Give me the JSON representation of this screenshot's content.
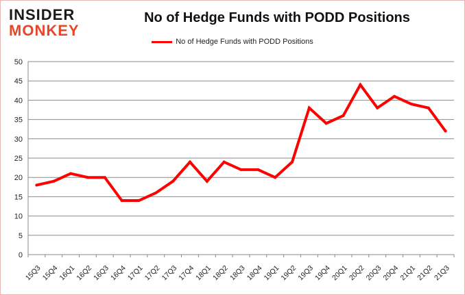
{
  "logo": {
    "line1": "INSIDER",
    "line2": "MONKEY"
  },
  "chart_data": {
    "type": "line",
    "title": "No of Hedge Funds with PODD Positions",
    "xlabel": "",
    "ylabel": "",
    "ylim": [
      0,
      50
    ],
    "yticks": [
      0,
      5,
      10,
      15,
      20,
      25,
      30,
      35,
      40,
      45,
      50
    ],
    "grid": true,
    "legend_position": "top",
    "categories": [
      "15Q3",
      "15Q4",
      "16Q1",
      "16Q2",
      "16Q3",
      "16Q4",
      "17Q1",
      "17Q2",
      "17Q3",
      "17Q4",
      "18Q1",
      "18Q2",
      "18Q3",
      "18Q4",
      "19Q1",
      "19Q2",
      "19Q3",
      "19Q4",
      "20Q1",
      "20Q2",
      "20Q3",
      "20Q4",
      "21Q1",
      "21Q2",
      "21Q3"
    ],
    "series": [
      {
        "name": "No of Hedge Funds with PODD Positions",
        "color": "#ff0000",
        "values": [
          18,
          19,
          21,
          20,
          20,
          14,
          14,
          16,
          19,
          24,
          19,
          24,
          22,
          22,
          20,
          24,
          38,
          34,
          36,
          44,
          38,
          41,
          39,
          38,
          32
        ]
      }
    ]
  }
}
